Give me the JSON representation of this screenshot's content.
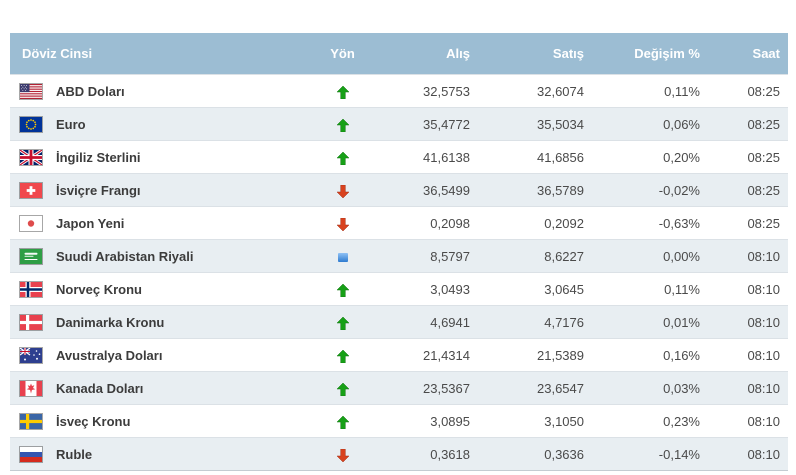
{
  "table": {
    "headers": [
      "Döviz Cinsi",
      "Yön",
      "Alış",
      "Satış",
      "Değişim %",
      "Saat"
    ],
    "rows": [
      {
        "currency": "ABD Doları",
        "flag": "us",
        "direction": "up",
        "buy": "32,5753",
        "sell": "32,6074",
        "change": "0,11%",
        "time": "08:25"
      },
      {
        "currency": "Euro",
        "flag": "eu",
        "direction": "up",
        "buy": "35,4772",
        "sell": "35,5034",
        "change": "0,06%",
        "time": "08:25"
      },
      {
        "currency": "İngiliz Sterlini",
        "flag": "gb",
        "direction": "up",
        "buy": "41,6138",
        "sell": "41,6856",
        "change": "0,20%",
        "time": "08:25"
      },
      {
        "currency": "İsviçre Frangı",
        "flag": "ch",
        "direction": "down",
        "buy": "36,5499",
        "sell": "36,5789",
        "change": "-0,02%",
        "time": "08:25"
      },
      {
        "currency": "Japon Yeni",
        "flag": "jp",
        "direction": "down",
        "buy": "0,2098",
        "sell": "0,2092",
        "change": "-0,63%",
        "time": "08:25"
      },
      {
        "currency": "Suudi Arabistan Riyali",
        "flag": "sa",
        "direction": "flat",
        "buy": "8,5797",
        "sell": "8,6227",
        "change": "0,00%",
        "time": "08:10"
      },
      {
        "currency": "Norveç Kronu",
        "flag": "no",
        "direction": "up",
        "buy": "3,0493",
        "sell": "3,0645",
        "change": "0,11%",
        "time": "08:10"
      },
      {
        "currency": "Danimarka Kronu",
        "flag": "dk",
        "direction": "up",
        "buy": "4,6941",
        "sell": "4,7176",
        "change": "0,01%",
        "time": "08:10"
      },
      {
        "currency": "Avustralya Doları",
        "flag": "au",
        "direction": "up",
        "buy": "21,4314",
        "sell": "21,5389",
        "change": "0,16%",
        "time": "08:10"
      },
      {
        "currency": "Kanada Doları",
        "flag": "ca",
        "direction": "up",
        "buy": "23,5367",
        "sell": "23,6547",
        "change": "0,03%",
        "time": "08:10"
      },
      {
        "currency": "İsveç Kronu",
        "flag": "se",
        "direction": "up",
        "buy": "3,0895",
        "sell": "3,1050",
        "change": "0,23%",
        "time": "08:10"
      },
      {
        "currency": "Ruble",
        "flag": "ru",
        "direction": "down",
        "buy": "0,3618",
        "sell": "0,3636",
        "change": "-0,14%",
        "time": "08:10"
      }
    ]
  },
  "colors": {
    "header_bg": "#9CBDD3",
    "header_text": "#FFFFFF",
    "row_alt_bg": "#E8EEF2",
    "up_arrow": "#17A017",
    "down_arrow": "#D8421F",
    "flat_indicator": "#4A90E2"
  }
}
